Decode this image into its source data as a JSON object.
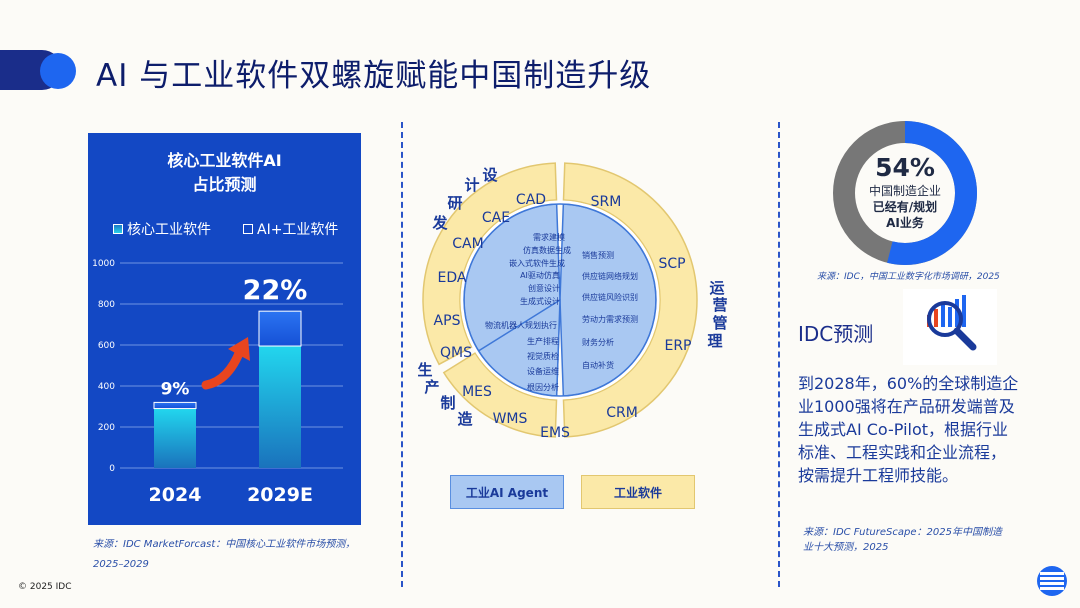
{
  "title": "AI 与工业软件双螺旋赋能中国制造升级",
  "chart_data": {
    "type": "bar",
    "title": "核心工业软件AI\n占比预测",
    "categories": [
      "2024",
      "2029E"
    ],
    "series": [
      {
        "name": "核心工业软件",
        "values": [
          290,
          595
        ]
      },
      {
        "name": "AI+工业软件",
        "values": [
          30,
          170
        ]
      }
    ],
    "totals": [
      320,
      765
    ],
    "labels": [
      "9%",
      "22%"
    ],
    "yticks": [
      "0",
      "200",
      "400",
      "600",
      "800",
      "1000"
    ],
    "ylim": [
      0,
      1000
    ]
  },
  "legend": {
    "core": "核心工业软件",
    "ai": "AI+工业软件"
  },
  "panel_title_1": "核心工业软件AI",
  "panel_title_2": "占比预测",
  "left_source": "来源：IDC MarketForcast：中国核心工业软件市场预测，2025–2029",
  "left_source_1": "来源：IDC MarketForcast：中国核心工业软件市场预测，",
  "left_source_2": "2025–2029",
  "ring": {
    "outer": [
      "CAD",
      "CAE",
      "CAM",
      "EDA",
      "SRM",
      "SCP",
      "ERP",
      "CRM",
      "EMS",
      "WMS",
      "MES",
      "QMS",
      "APS"
    ],
    "inner_design": [
      "需求建模",
      "仿真数据生成",
      "嵌入式软件生成",
      "AI驱动仿真",
      "创意设计",
      "生成式设计"
    ],
    "inner_ops": [
      "销售预测",
      "供应链网络规划",
      "供应链风险识别",
      "劳动力需求预测",
      "财务分析",
      "自动补货"
    ],
    "inner_prod": [
      "物流机器人规划执行",
      "生产排程",
      "视觉质检",
      "设备运维",
      "根因分析"
    ],
    "arc_design": "设计研发",
    "arc_ops": "运营管理",
    "arc_prod": "生产制造"
  },
  "buttons": {
    "agent": "工业AI Agent",
    "software": "工业软件"
  },
  "donut": {
    "value": 54,
    "pct": "54%",
    "line1": "中国制造企业",
    "line2": "已经有/规划",
    "line3": "AI业务"
  },
  "donut_source": "来源：IDC，中国工业数字化市场调研，2025",
  "idc_title": "IDC预测",
  "idc_text": "到2028年，60%的全球制造企业1000强将在产品研发端普及生成式AI Co-Pilot，根据行业标准、工程实践和企业流程，按需提升工程师技能。",
  "idc_source": "来源：IDC FutureScape：2025年中国制造业十大预测，2025",
  "idc_source_1": "来源：IDC FutureScape：2025年中国制造",
  "idc_source_2": "业十大预测，2025",
  "copyright": "© 2025 IDC",
  "colors": {
    "blue": "#1348c4",
    "accent": "#1e66f0",
    "yellow": "#fbe9a8",
    "lightblue": "#a9c8f2"
  }
}
